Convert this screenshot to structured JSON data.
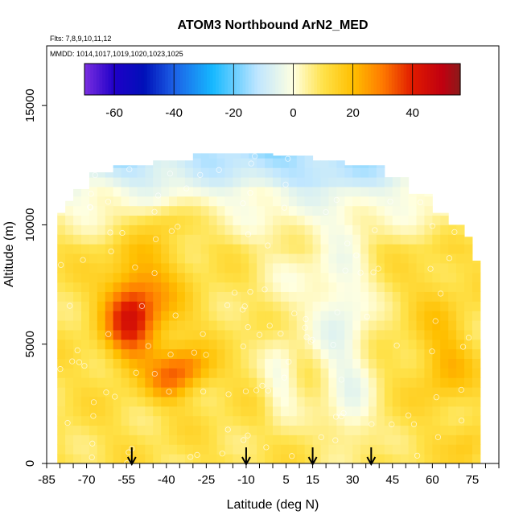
{
  "chart_data": {
    "type": "heatmap",
    "title": "ATOM3 Northbound ArN2_MED",
    "subtitle_flights": "Flts: 7,8,9,10,11,12",
    "subtitle_dates": "MMDD: 1014,1017,1019,1020,1023,1025",
    "xlabel": "Latitude (deg N)",
    "ylabel": "Altitude (m)",
    "xlim": [
      -85,
      85
    ],
    "ylim": [
      0,
      17500
    ],
    "x_tick_labels": [
      "-85",
      "-70",
      "-55",
      "-40",
      "-25",
      "-10",
      "5",
      "15",
      "30",
      "45",
      "60",
      "75"
    ],
    "x_tick_values": [
      -85,
      -70,
      -55,
      -40,
      -25,
      -10,
      5,
      15,
      30,
      45,
      60,
      75
    ],
    "y_tick_labels": [
      "0",
      "5000",
      "10000",
      "15000"
    ],
    "y_tick_values": [
      0,
      5000,
      10000,
      15000
    ],
    "colorbar": {
      "range": [
        -70,
        56
      ],
      "tick_labels": [
        "-60",
        "-40",
        "-20",
        "0",
        "20",
        "40"
      ],
      "tick_values": [
        -60,
        -40,
        -20,
        0,
        20,
        40
      ],
      "colors": {
        "-70": "#7b2fe0",
        "-60": "#1f00c8",
        "-50": "#0010b8",
        "-40": "#1c60e6",
        "-27": "#16b8ff",
        "-12": "#bfe6ff",
        "0": "#ffffe0",
        "10": "#ffe24a",
        "20": "#ffbf00",
        "30": "#ff7a00",
        "40": "#e01a00",
        "50": "#c00010",
        "56": "#8b1a1a"
      }
    },
    "arrow_latitudes": [
      -53,
      -10,
      15,
      37
    ]
  }
}
